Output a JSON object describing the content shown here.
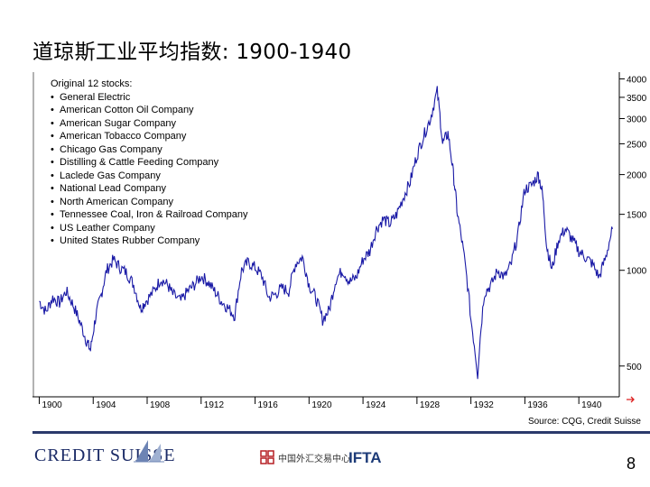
{
  "title": "道琼斯工业平均指数: 1900-1940",
  "stocks_box": {
    "heading": "Original 12 stocks:",
    "items": [
      "General Electric",
      "American Cotton Oil Company",
      "American Sugar Company",
      "American Tobacco Company",
      "Chicago Gas Company",
      "Distilling & Cattle Feeding Company",
      "Laclede Gas Company",
      "National Lead Company",
      "North American Company",
      "Tennessee Coal, Iron & Railroad Company",
      "US Leather Company",
      "United States Rubber Company"
    ]
  },
  "source": "Source: CQG, Credit Suisse",
  "footer": {
    "brand": "CREDIT SUISSE",
    "partner1": "中国外汇交易中心",
    "partner2": "IFTA",
    "page_number": "8"
  },
  "colors": {
    "series": "#1a1aa6",
    "divider": "#2b3a6b",
    "brand": "#1a2a66"
  },
  "chart_data": {
    "type": "line",
    "title": "",
    "xlabel": "",
    "ylabel": "",
    "y_scale": "log",
    "ylim": [
      400,
      4200
    ],
    "xlim": [
      1899.5,
      1943
    ],
    "x_ticks": [
      "1900",
      "1904",
      "1908",
      "1912",
      "1916",
      "1920",
      "1924",
      "1928",
      "1932",
      "1936",
      "1940"
    ],
    "y_ticks": [
      500,
      1000,
      1500,
      2000,
      2500,
      3000,
      3500,
      4000
    ],
    "y_tick_labels": [
      "500",
      "1000",
      "1500",
      "2000",
      "2500",
      "3000",
      "3500",
      "4000"
    ],
    "series": [
      {
        "x": [
          1900,
          1900.5,
          1901,
          1901.5,
          1902,
          1902.5,
          1903,
          1903.5,
          1903.8,
          1904.2,
          1904.6,
          1905,
          1905.5,
          1906,
          1906.5,
          1907,
          1907.5,
          1907.9,
          1908.5,
          1909,
          1909.5,
          1909.9,
          1910.5,
          1911,
          1911.5,
          1912,
          1912.5,
          1913,
          1913.5,
          1914,
          1914.5,
          1915,
          1915.5,
          1916,
          1916.5,
          1917,
          1917.5,
          1918,
          1918.5,
          1919,
          1919.5,
          1920,
          1920.5,
          1921,
          1921.5,
          1922,
          1922.5,
          1923,
          1923.5,
          1924,
          1924.5,
          1925,
          1925.5,
          1926,
          1926.5,
          1927,
          1927.5,
          1928,
          1928.5,
          1929,
          1929.5,
          1929.9,
          1930.3,
          1930.7,
          1931,
          1931.5,
          1932,
          1932.5,
          1933,
          1933.5,
          1934,
          1934.5,
          1935,
          1935.5,
          1936,
          1936.5,
          1937,
          1937.3,
          1937.6,
          1938,
          1938.5,
          1939,
          1939.5,
          1940,
          1940.5,
          1941,
          1941.5,
          1942,
          1942.5
        ],
        "y": [
          800,
          740,
          820,
          790,
          860,
          780,
          690,
          600,
          560,
          720,
          840,
          1000,
          1080,
          1020,
          980,
          900,
          760,
          800,
          860,
          940,
          900,
          840,
          800,
          860,
          900,
          960,
          920,
          860,
          800,
          760,
          720,
          1000,
          1060,
          1020,
          960,
          820,
          840,
          880,
          860,
          1050,
          1100,
          900,
          820,
          700,
          750,
          940,
          1000,
          920,
          950,
          1080,
          1150,
          1350,
          1450,
          1400,
          1500,
          1700,
          1900,
          2300,
          2650,
          3000,
          3650,
          2500,
          2700,
          2000,
          1500,
          1100,
          700,
          470,
          850,
          900,
          1000,
          950,
          1050,
          1300,
          1800,
          1850,
          2000,
          1750,
          1200,
          1000,
          1250,
          1350,
          1250,
          1150,
          1100,
          1050,
          950,
          1100,
          1350
        ]
      }
    ]
  }
}
